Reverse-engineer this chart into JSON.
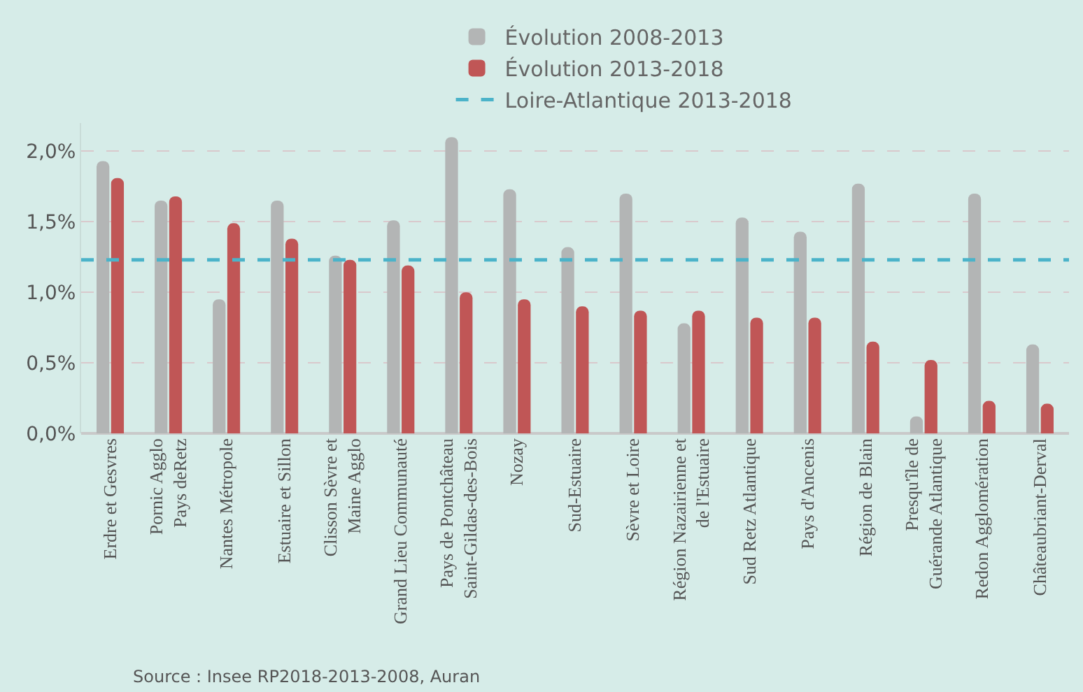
{
  "chart_data": {
    "type": "bar",
    "categories": [
      "Erdre et Gesvres",
      "Pornic Agglo\nPays deRetz",
      "Nantes Métropole",
      "Estuaire et Sillon",
      "Clisson Sèvre et\nMaine Agglo",
      "Grand Lieu Communauté",
      "Pays de Pontchâteau\nSaint-Gildas-des-Bois",
      "Nozay",
      "Sud-Estuaire",
      "Sèvre et Loire",
      "Région Nazairienne et\nde l'Estuaire",
      "Sud Retz Atlantique",
      "Pays d'Ancenis",
      "Région de Blain",
      "Presqu'île de\nGuérande Atlantique",
      "Redon Agglomération",
      "Châteaubriant-Derval"
    ],
    "series": [
      {
        "name": "Évolution 2008-2013",
        "color": "#b3b5b5",
        "values": [
          1.93,
          1.65,
          0.95,
          1.65,
          1.26,
          1.51,
          2.1,
          1.73,
          1.32,
          1.7,
          0.78,
          1.53,
          1.43,
          1.77,
          0.12,
          1.7,
          0.63
        ]
      },
      {
        "name": "Évolution 2013-2018",
        "color": "#c05656",
        "values": [
          1.81,
          1.68,
          1.49,
          1.38,
          1.23,
          1.19,
          1.0,
          0.95,
          0.9,
          0.87,
          0.87,
          0.82,
          0.82,
          0.65,
          0.52,
          0.23,
          0.21
        ]
      }
    ],
    "ref_lines": [
      {
        "axis": "y",
        "value": 1.23,
        "label": "Loire-Atlantique 2013-2018",
        "color": "#4bb3c9",
        "line_style": "dashed"
      }
    ],
    "ylim": [
      0,
      2.2
    ],
    "yticks": [
      {
        "value": 0,
        "label": "0,0%"
      },
      {
        "value": 0.5,
        "label": "0,5%"
      },
      {
        "value": 1,
        "label": "1,0%"
      },
      {
        "value": 1.5,
        "label": "1,5%"
      },
      {
        "value": 2,
        "label": "2,0%"
      }
    ],
    "grid": "y",
    "legend": "top",
    "annotations": [
      "Source : Insee RP2018-2013-2008, Auran"
    ]
  }
}
